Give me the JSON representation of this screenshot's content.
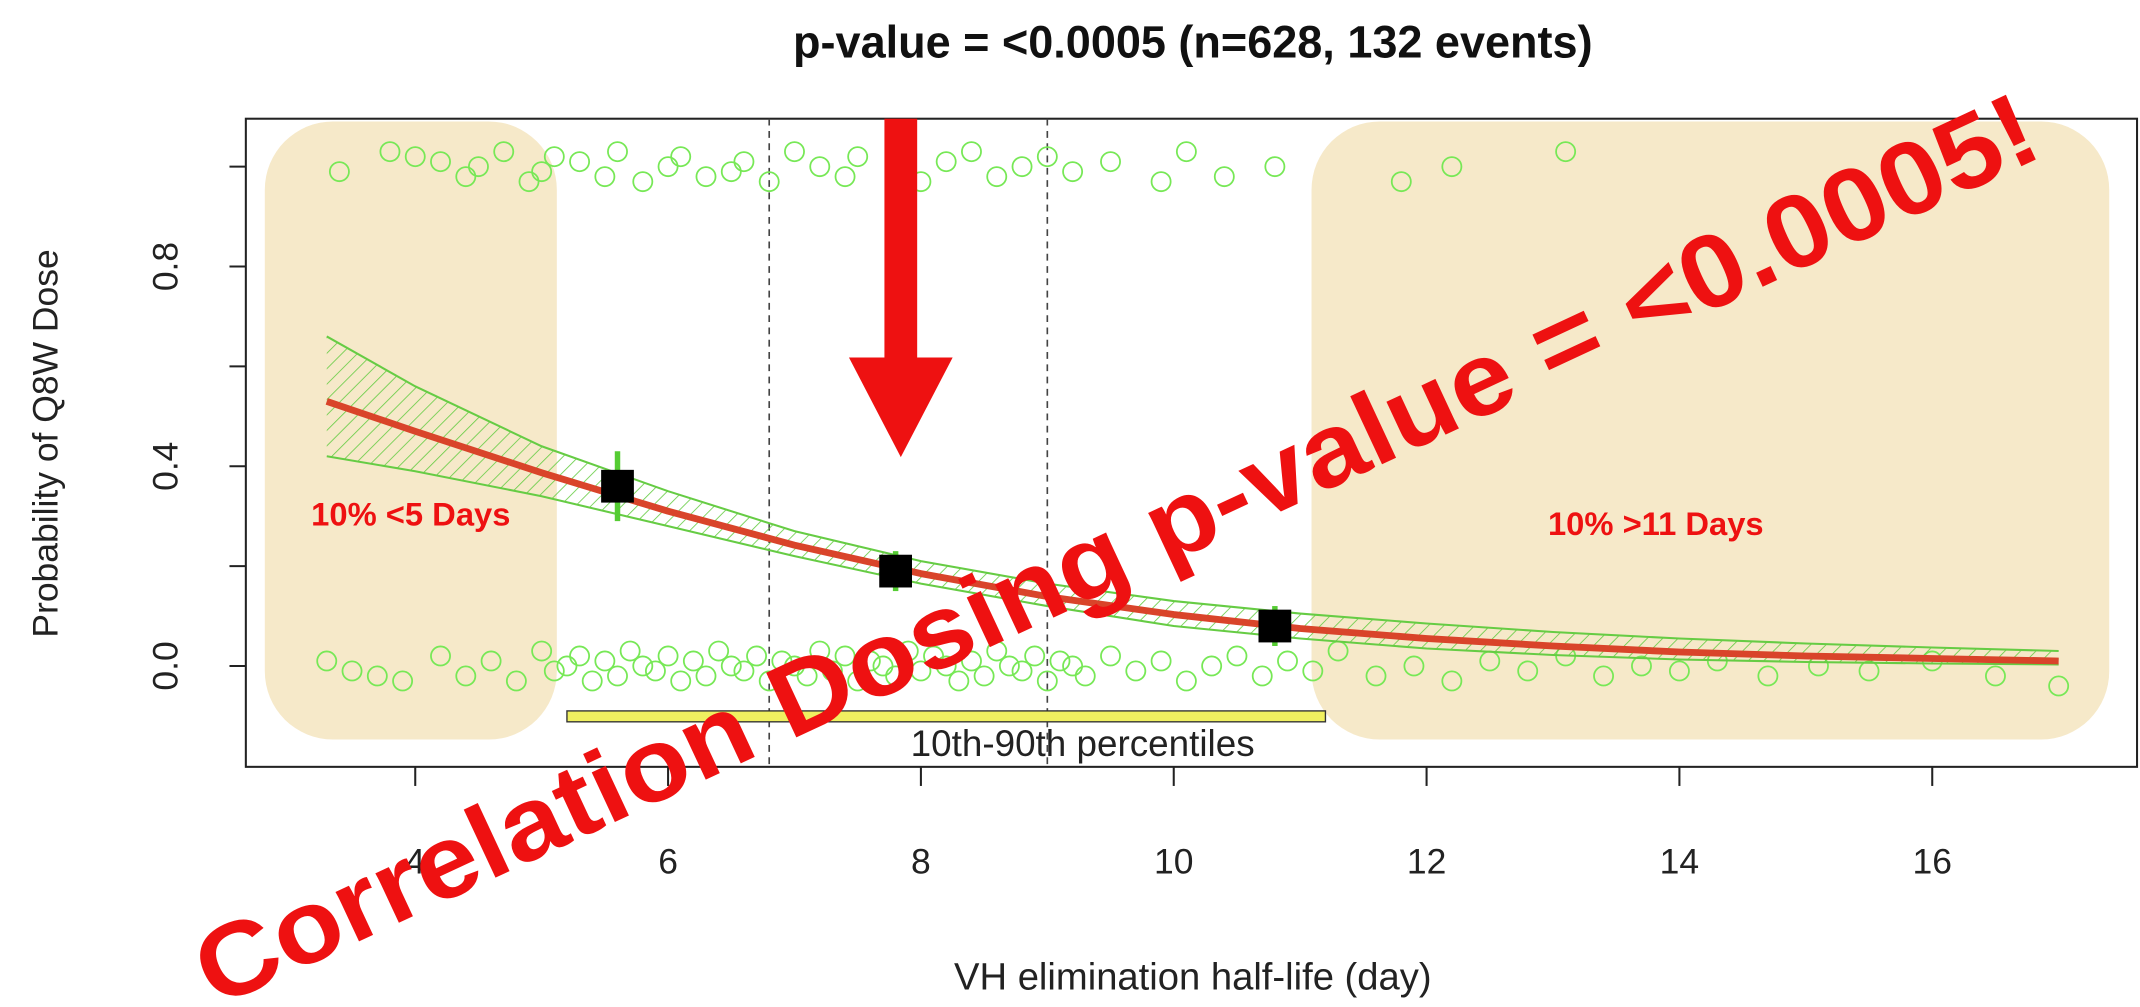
{
  "chart_data": {
    "type": "scatter",
    "title": "p-value = <0.0005 (n=628, 132 events)",
    "x_label": "VH elimination half-life (day)",
    "y_label": "Probability of Q8W Dose",
    "xlim": [
      2.66,
      17.62
    ],
    "ylim": [
      -0.202,
      1.096
    ],
    "xticks": [
      4,
      6,
      8,
      10,
      12,
      14,
      16
    ],
    "yticks": [
      {
        "value": 0,
        "label": "0.0"
      },
      {
        "value": 0.4,
        "label": "0.4"
      },
      {
        "value": 0.8,
        "label": "0.8"
      }
    ],
    "yminorticks": [
      0.2,
      0.6,
      1.0
    ],
    "color": "#77e856",
    "x": [
      3.4,
      3.8,
      4.0,
      4.2,
      4.4,
      4.5,
      4.7,
      4.9,
      5.0,
      5.1,
      5.3,
      5.5,
      5.6,
      5.8,
      6.0,
      6.1,
      6.3,
      6.5,
      6.6,
      6.8,
      7.0,
      7.2,
      7.4,
      7.5,
      7.8,
      8.0,
      8.2,
      8.4,
      8.6,
      8.8,
      9.0,
      9.2,
      9.5,
      9.9,
      10.1,
      10.4,
      10.8,
      11.8,
      12.2,
      13.1,
      3.3,
      3.5,
      3.7,
      3.9,
      4.2,
      4.4,
      4.6,
      4.8,
      5.0,
      5.1,
      5.2,
      5.3,
      5.4,
      5.5,
      5.6,
      5.7,
      5.8,
      5.9,
      6.0,
      6.1,
      6.2,
      6.3,
      6.4,
      6.5,
      6.6,
      6.7,
      6.8,
      6.9,
      7.0,
      7.1,
      7.2,
      7.3,
      7.4,
      7.5,
      7.6,
      7.7,
      7.8,
      7.9,
      8.0,
      8.1,
      8.2,
      8.3,
      8.4,
      8.5,
      8.6,
      8.7,
      8.8,
      8.9,
      9.0,
      9.1,
      9.2,
      9.3,
      9.5,
      9.7,
      9.9,
      10.1,
      10.3,
      10.5,
      10.7,
      10.9,
      11.1,
      11.3,
      11.6,
      11.9,
      12.2,
      12.5,
      12.8,
      13.1,
      13.4,
      13.7,
      14.0,
      14.3,
      14.7,
      15.1,
      15.5,
      16.0,
      16.5,
      17.0
    ],
    "values": [
      0.99,
      1.03,
      1.02,
      1.01,
      0.98,
      1.0,
      1.03,
      0.97,
      0.99,
      1.02,
      1.01,
      0.98,
      1.03,
      0.97,
      1.0,
      1.02,
      0.98,
      0.99,
      1.01,
      0.97,
      1.03,
      1.0,
      0.98,
      1.02,
      0.99,
      0.97,
      1.01,
      1.03,
      0.98,
      1.0,
      1.02,
      0.99,
      1.01,
      0.97,
      1.03,
      0.98,
      1.0,
      0.97,
      1.0,
      1.03,
      0.01,
      -0.01,
      -0.02,
      -0.03,
      0.02,
      -0.02,
      0.01,
      -0.03,
      0.03,
      -0.01,
      0.0,
      0.02,
      -0.03,
      0.01,
      -0.02,
      0.03,
      0.0,
      -0.01,
      0.02,
      -0.03,
      0.01,
      -0.02,
      0.03,
      0.0,
      -0.01,
      0.02,
      -0.03,
      0.01,
      0.0,
      -0.02,
      0.03,
      -0.01,
      0.02,
      -0.03,
      0.01,
      0.0,
      -0.02,
      0.03,
      -0.01,
      0.02,
      0.0,
      -0.03,
      0.01,
      -0.02,
      0.03,
      0.0,
      -0.01,
      0.02,
      -0.03,
      0.01,
      0.0,
      -0.02,
      0.02,
      -0.01,
      0.01,
      -0.03,
      0.0,
      0.02,
      -0.02,
      0.01,
      -0.01,
      0.03,
      -0.02,
      0.0,
      -0.03,
      0.01,
      -0.01,
      0.02,
      -0.02,
      0.0,
      -0.01,
      0.01,
      -0.02,
      0.0,
      -0.01,
      0.01,
      -0.02,
      -0.04
    ],
    "fit": {
      "color": "#d9442a",
      "band_color": "#66cc44",
      "x": [
        3.3,
        4,
        5,
        6,
        7,
        8,
        9,
        10,
        11,
        12,
        13,
        14,
        15,
        16,
        17
      ],
      "values": [
        0.53,
        0.47,
        0.387,
        0.31,
        0.242,
        0.185,
        0.139,
        0.103,
        0.075,
        0.055,
        0.04,
        0.028,
        0.02,
        0.015,
        0.01
      ],
      "lower": [
        0.42,
        0.39,
        0.34,
        0.28,
        0.22,
        0.165,
        0.12,
        0.08,
        0.055,
        0.035,
        0.022,
        0.013,
        0.008,
        0.005,
        0.003
      ],
      "upper": [
        0.66,
        0.56,
        0.44,
        0.35,
        0.27,
        0.21,
        0.165,
        0.13,
        0.105,
        0.085,
        0.068,
        0.055,
        0.045,
        0.037,
        0.03
      ]
    },
    "group_means": {
      "x": [
        5.6,
        7.8,
        10.8
      ],
      "values": [
        0.36,
        0.19,
        0.08
      ],
      "errors": [
        0.07,
        0.04,
        0.04
      ]
    },
    "ref_lines_x": [
      6.8,
      9.0
    ],
    "percentile_range": {
      "x": [
        5.2,
        11.2
      ],
      "label": "10th-90th percentiles"
    },
    "regions": [
      {
        "x": [
          2.81,
          5.12
        ],
        "label": "10% <5 Days"
      },
      {
        "x": [
          11.09,
          17.4
        ],
        "label": "10% >11 Days"
      }
    ],
    "annotation": "Correlation Dosing p-value = <0.0005!"
  }
}
